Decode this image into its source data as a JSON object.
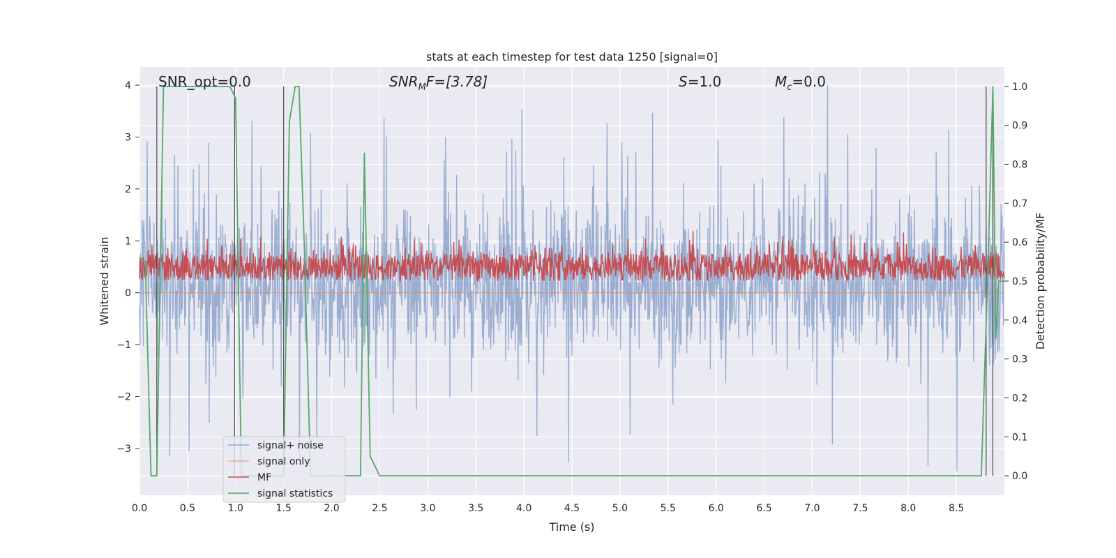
{
  "chart_data": {
    "type": "line",
    "title": "stats at each timestep for test data 1250 [signal=0]",
    "xlabel": "Time (s)",
    "ylabel_left": "Whitened strain",
    "ylabel_right": "Detection probability/MF",
    "xlim": [
      0.0,
      9.0
    ],
    "ylim_left": [
      -3.9,
      4.35
    ],
    "ylim_right": [
      -0.05,
      1.05
    ],
    "x_ticks": [
      "0.0",
      "0.5",
      "1.0",
      "1.5",
      "2.0",
      "2.5",
      "3.0",
      "3.5",
      "4.0",
      "4.5",
      "5.0",
      "5.5",
      "6.0",
      "6.5",
      "7.0",
      "7.5",
      "8.0",
      "8.5"
    ],
    "y_ticks_left": [
      "−3",
      "−2",
      "−1",
      "0",
      "1",
      "2",
      "3",
      "4"
    ],
    "y_ticks_right": [
      "0.0",
      "0.1",
      "0.2",
      "0.3",
      "0.4",
      "0.5",
      "0.6",
      "0.7",
      "0.8",
      "0.9",
      "1.0"
    ],
    "grid": true,
    "annotations": {
      "snr_opt": "SNR_opt=0.0",
      "snr_mf_main": "SNR",
      "snr_mf_sub": "M",
      "snr_mf_rest": "F=[3.78]",
      "s_main": "S",
      "s_rest": "=1.0",
      "mc_main": "M",
      "mc_sub": "c",
      "mc_rest": "=0.0"
    },
    "legend": {
      "placement": "lower-left",
      "entries": [
        {
          "label": "signal+ noise",
          "color": "#4c72b0"
        },
        {
          "label": "signal only",
          "color": "#dd8452"
        },
        {
          "label": "MF",
          "color": "#c44e52"
        },
        {
          "label": "signal statistics",
          "color": "#55a868"
        }
      ]
    },
    "series": [
      {
        "name": "signal+ noise",
        "axis": "left",
        "color": "#4c72b0",
        "style": "dense noise, approx. range -3.6 to 4.0, typical spread -1.5 to 2"
      },
      {
        "name": "signal only",
        "axis": "left",
        "color": "#dd8452",
        "values_constant": 0.0
      },
      {
        "name": "MF",
        "axis": "right",
        "color": "#c44e52",
        "style": "noise band approx. 0.50 to 0.62 detection-prob scale"
      },
      {
        "name": "signal statistics",
        "axis": "right",
        "color": "#55a868",
        "x": [
          0.0,
          0.06,
          0.12,
          0.18,
          0.25,
          0.3,
          0.5,
          0.7,
          0.94,
          1.0,
          1.06,
          1.5,
          1.56,
          1.62,
          1.66,
          1.72,
          1.78,
          2.0,
          2.3,
          2.34,
          2.4,
          2.5,
          3.0,
          4.0,
          5.0,
          6.0,
          7.0,
          8.0,
          8.76,
          8.83,
          8.88,
          8.91,
          8.94,
          9.0
        ],
        "y": [
          0.56,
          0.55,
          0.0,
          0.0,
          1.0,
          1.0,
          1.0,
          1.0,
          1.0,
          0.97,
          0.0,
          0.0,
          0.91,
          1.0,
          1.0,
          0.55,
          0.0,
          0.0,
          0.0,
          0.83,
          0.05,
          0.0,
          0.0,
          0.0,
          0.0,
          0.0,
          0.0,
          0.0,
          0.0,
          0.55,
          1.0,
          0.35,
          0.5,
          0.5
        ]
      }
    ],
    "vlines_x": [
      0.18,
      0.99,
      1.5,
      8.81,
      8.88
    ]
  }
}
